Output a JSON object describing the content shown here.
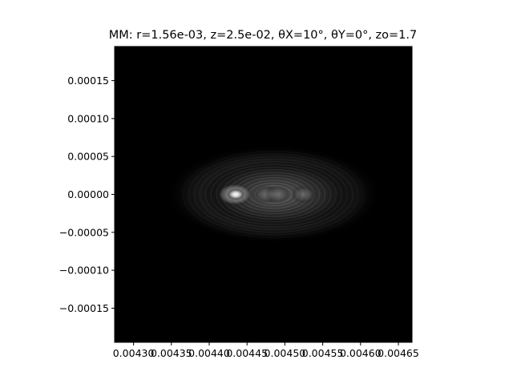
{
  "chart_data": {
    "type": "heatmap",
    "title": "MM: r=1.56e-03, z=2.5e-02, θX=10°, θY=0°, zo=1.7",
    "xlabel": "",
    "ylabel": "",
    "xlim": [
      0.004275,
      0.004668
    ],
    "ylim": [
      -0.000195,
      0.000195
    ],
    "colormap": "gray",
    "grid": false,
    "xticks": [
      0.0043,
      0.00435,
      0.0044,
      0.00445,
      0.0045,
      0.00455,
      0.0046,
      0.00465
    ],
    "xtick_labels": [
      "0.00430",
      "0.00435",
      "0.00440",
      "0.00445",
      "0.00450",
      "0.00455",
      "0.00460",
      "0.00465"
    ],
    "yticks": [
      0.00015,
      0.0001,
      5e-05,
      0.0,
      -5e-05,
      -0.0001,
      -0.00015
    ],
    "ytick_labels": [
      "0.00015",
      "0.00010",
      "0.00005",
      "0.00000",
      "−0.00005",
      "−0.00010",
      "−0.00015"
    ],
    "intensity_features": [
      {
        "label": "peak",
        "x": 0.004434,
        "y": 0.0,
        "intensity": 1.0
      },
      {
        "label": "node",
        "x": 0.004475,
        "y": 0.0,
        "intensity": 0.55
      },
      {
        "label": "node",
        "x": 0.00449,
        "y": 0.0,
        "intensity": 0.5
      },
      {
        "label": "node",
        "x": 0.004525,
        "y": 0.0,
        "intensity": 0.55
      }
    ]
  }
}
